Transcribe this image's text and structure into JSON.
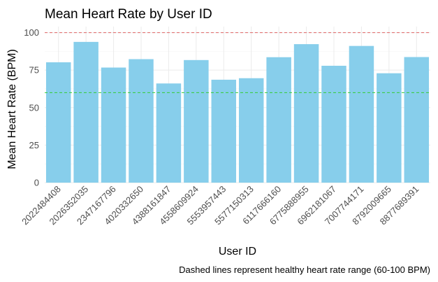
{
  "chart_data": {
    "type": "bar",
    "title": "Mean Heart Rate by User ID",
    "xlabel": "User ID",
    "ylabel": "Mean Heart Rate (BPM)",
    "caption": "Dashed lines represent healthy heart rate range (60-100 BPM)",
    "categories": [
      "2022484408",
      "2026352035",
      "2347167796",
      "4020332650",
      "4388161847",
      "4558609924",
      "5553957443",
      "5577150313",
      "6117666160",
      "6775888955",
      "6962181067",
      "7007744171",
      "8792009665",
      "8877689391"
    ],
    "values": [
      80.2,
      93.8,
      76.7,
      82.3,
      66.1,
      81.7,
      68.6,
      69.6,
      83.6,
      92.3,
      77.9,
      91.1,
      72.9,
      83.7
    ],
    "ylim": [
      0,
      104
    ],
    "yticks": [
      0,
      25,
      50,
      75,
      100
    ],
    "grid": true,
    "reference_lines": [
      {
        "value": 100,
        "color": "#e06666",
        "style": "dashed"
      },
      {
        "value": 60,
        "color": "#33cc33",
        "style": "dashed"
      }
    ],
    "bar_color": "#87ceeb"
  }
}
